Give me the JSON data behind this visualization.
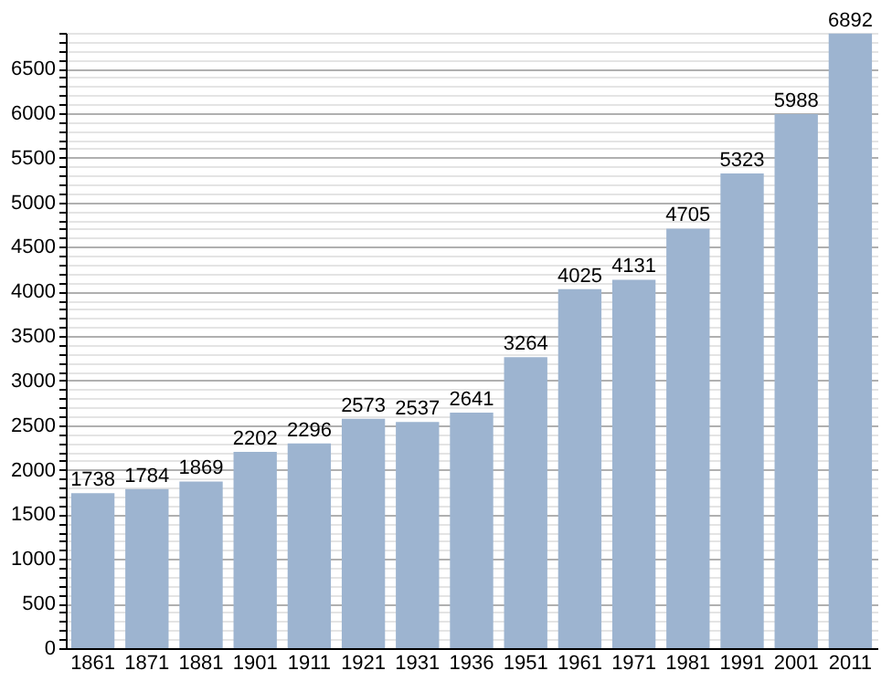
{
  "chart_data": {
    "type": "bar",
    "categories": [
      "1861",
      "1871",
      "1881",
      "1901",
      "1911",
      "1921",
      "1931",
      "1936",
      "1951",
      "1961",
      "1971",
      "1981",
      "1991",
      "2001",
      "2011"
    ],
    "values": [
      1738,
      1784,
      1869,
      2202,
      2296,
      2573,
      2537,
      2641,
      3264,
      4025,
      4131,
      4705,
      5323,
      5988,
      6892
    ],
    "color": "#9db4d0",
    "data_labels": true,
    "ylim": [
      0,
      6900
    ],
    "yticks": [
      0,
      {
        "value": 100,
        "label": null
      },
      {
        "value": 200,
        "label": null
      },
      {
        "value": 300,
        "label": null
      },
      {
        "value": 400,
        "label": null
      },
      500,
      {
        "value": 600,
        "label": null
      },
      {
        "value": 700,
        "label": null
      },
      {
        "value": 800,
        "label": null
      },
      {
        "value": 900,
        "label": null
      },
      1000,
      {
        "value": 1100,
        "label": null
      },
      {
        "value": 1200,
        "label": null
      },
      {
        "value": 1300,
        "label": null
      },
      {
        "value": 1400,
        "label": null
      },
      1500,
      {
        "value": 1600,
        "label": null
      },
      {
        "value": 1700,
        "label": null
      },
      {
        "value": 1800,
        "label": null
      },
      {
        "value": 1900,
        "label": null
      },
      2000,
      {
        "value": 2100,
        "label": null
      },
      {
        "value": 2200,
        "label": null
      },
      {
        "value": 2300,
        "label": null
      },
      {
        "value": 2400,
        "label": null
      },
      2500,
      {
        "value": 2600,
        "label": null
      },
      {
        "value": 2700,
        "label": null
      },
      {
        "value": 2800,
        "label": null
      },
      {
        "value": 2900,
        "label": null
      },
      3000,
      {
        "value": 3100,
        "label": null
      },
      {
        "value": 3200,
        "label": null
      },
      {
        "value": 3300,
        "label": null
      },
      {
        "value": 3400,
        "label": null
      },
      3500,
      {
        "value": 3600,
        "label": null
      },
      {
        "value": 3700,
        "label": null
      },
      {
        "value": 3800,
        "label": null
      },
      {
        "value": 3900,
        "label": null
      },
      4000,
      {
        "value": 4100,
        "label": null
      },
      {
        "value": 4200,
        "label": null
      },
      {
        "value": 4300,
        "label": null
      },
      {
        "value": 4400,
        "label": null
      },
      4500,
      {
        "value": 4600,
        "label": null
      },
      {
        "value": 4700,
        "label": null
      },
      {
        "value": 4800,
        "label": null
      },
      {
        "value": 4900,
        "label": null
      },
      5000,
      {
        "value": 5100,
        "label": null
      },
      {
        "value": 5200,
        "label": null
      },
      {
        "value": 5300,
        "label": null
      },
      {
        "value": 5400,
        "label": null
      },
      5500,
      {
        "value": 5600,
        "label": null
      },
      {
        "value": 5700,
        "label": null
      },
      {
        "value": 5800,
        "label": null
      },
      {
        "value": 5900,
        "label": null
      },
      6000,
      {
        "value": 6100,
        "label": null
      },
      {
        "value": 6200,
        "label": null
      },
      {
        "value": 6300,
        "label": null
      },
      {
        "value": 6400,
        "label": null
      },
      6500,
      {
        "value": 6600,
        "label": null
      },
      {
        "value": 6700,
        "label": null
      },
      {
        "value": 6800,
        "label": null
      },
      {
        "value": 6900,
        "label": null
      }
    ],
    "grid": "y"
  }
}
